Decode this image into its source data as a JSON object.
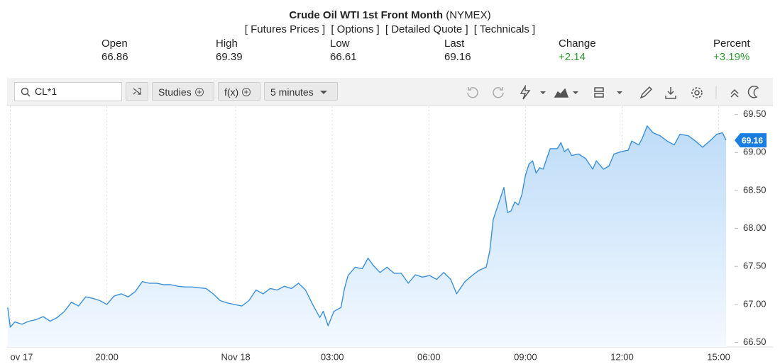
{
  "header": {
    "title": "Crude Oil WTI 1st Front Month",
    "exchange": "(NYMEX)",
    "links": [
      "[ Futures Prices ]",
      "[ Options ]",
      "[ Detailed Quote ]",
      "[ Technicals ]"
    ]
  },
  "quote": [
    {
      "label": "Open",
      "value": "66.86"
    },
    {
      "label": "High",
      "value": "69.39"
    },
    {
      "label": "Low",
      "value": "66.61"
    },
    {
      "label": "Last",
      "value": "69.16"
    },
    {
      "label": "Change",
      "value": "+2.14"
    },
    {
      "label": "Percent",
      "value": "+3.19%"
    }
  ],
  "toolbar": {
    "symbol": "CL*1",
    "studies": "Studies",
    "function": "f(x)",
    "interval": "5 minutes"
  },
  "chart_data": {
    "type": "area",
    "color": "#3b8fd8",
    "x": [
      16.92,
      17.0,
      17.14,
      17.36,
      17.58,
      17.8,
      18.02,
      18.24,
      18.46,
      18.68,
      18.9,
      19.12,
      19.34,
      19.56,
      19.78,
      20.0,
      20.22,
      20.44,
      20.66,
      20.88,
      21.1,
      21.32,
      21.54,
      21.76,
      21.98,
      22.2,
      22.42,
      22.64,
      22.86,
      23.08,
      23.3,
      23.52,
      23.74,
      23.96,
      24.19,
      24.41,
      24.63,
      24.85,
      25.07,
      25.29,
      25.51,
      25.73,
      25.95,
      26.17,
      26.39,
      26.61,
      26.72,
      26.87,
      27.05,
      27.27,
      27.38,
      27.49,
      27.71,
      27.93,
      28.11,
      28.26,
      28.48,
      28.7,
      28.92,
      29.14,
      29.36,
      29.58,
      29.8,
      30.02,
      30.24,
      30.46,
      30.68,
      30.86,
      31.12,
      31.34,
      31.56,
      31.78,
      31.89,
      32.0,
      32.11,
      32.22,
      32.33,
      32.44,
      32.55,
      32.67,
      32.78,
      32.89,
      33.0,
      33.11,
      33.22,
      33.33,
      33.44,
      33.55,
      33.66,
      33.77,
      33.99,
      34.1,
      34.21,
      34.32,
      34.43,
      34.65,
      34.87,
      35.09,
      35.2,
      35.42,
      35.59,
      35.75,
      35.97,
      36.19,
      36.3,
      36.52,
      36.63,
      36.78,
      36.96,
      37.18,
      37.4,
      37.62,
      37.8,
      38.06,
      38.28,
      38.5,
      38.72,
      38.94,
      39.12,
      39.23
    ],
    "values": [
      66.96,
      66.7,
      66.77,
      66.74,
      66.78,
      66.8,
      66.84,
      66.78,
      66.83,
      66.91,
      67.03,
      66.98,
      67.1,
      67.08,
      67.05,
      67.0,
      67.11,
      67.14,
      67.1,
      67.17,
      67.3,
      67.28,
      67.28,
      67.26,
      67.26,
      67.24,
      67.23,
      67.23,
      67.22,
      67.21,
      67.14,
      67.05,
      67.02,
      67.0,
      66.98,
      67.05,
      67.19,
      67.14,
      67.21,
      67.19,
      67.24,
      67.21,
      67.28,
      67.19,
      67.0,
      66.83,
      66.91,
      66.72,
      66.91,
      66.96,
      67.21,
      67.38,
      67.49,
      67.47,
      67.61,
      67.52,
      67.42,
      67.49,
      67.41,
      67.41,
      67.28,
      67.39,
      67.36,
      67.38,
      67.33,
      67.42,
      67.33,
      67.14,
      67.3,
      67.38,
      67.45,
      67.49,
      67.7,
      68.12,
      68.26,
      68.4,
      68.54,
      68.21,
      68.23,
      68.35,
      68.31,
      68.45,
      68.7,
      68.85,
      68.89,
      68.73,
      68.8,
      68.78,
      68.92,
      69.05,
      69.05,
      69.13,
      69.01,
      69.05,
      68.96,
      68.98,
      68.92,
      68.78,
      68.89,
      68.78,
      68.82,
      68.98,
      69.01,
      69.03,
      69.15,
      69.1,
      69.19,
      69.35,
      69.26,
      69.22,
      69.15,
      69.1,
      69.24,
      69.22,
      69.15,
      69.07,
      69.15,
      69.24,
      69.26,
      69.16
    ],
    "last_label": "69.16",
    "xlim": [
      16.9,
      39.45
    ],
    "xticks": [
      {
        "value": 17,
        "label": "ov 17"
      },
      {
        "value": 20,
        "label": "20:00"
      },
      {
        "value": 24,
        "label": "Nov 18"
      },
      {
        "value": 27,
        "label": "03:00"
      },
      {
        "value": 30,
        "label": "06:00"
      },
      {
        "value": 33,
        "label": "09:00"
      },
      {
        "value": 36,
        "label": "12:00"
      },
      {
        "value": 39,
        "label": "15:00"
      }
    ],
    "ylim": [
      66.44,
      69.59
    ],
    "yticks": [
      {
        "value": 66.5,
        "label": "66.50"
      },
      {
        "value": 67,
        "label": "67.00"
      },
      {
        "value": 67.5,
        "label": "67.50"
      },
      {
        "value": 68,
        "label": "68.00"
      },
      {
        "value": 68.5,
        "label": "68.50"
      },
      {
        "value": 69,
        "label": "69.00"
      },
      {
        "value": 69.5,
        "label": "69.50"
      }
    ],
    "grid": "x"
  }
}
